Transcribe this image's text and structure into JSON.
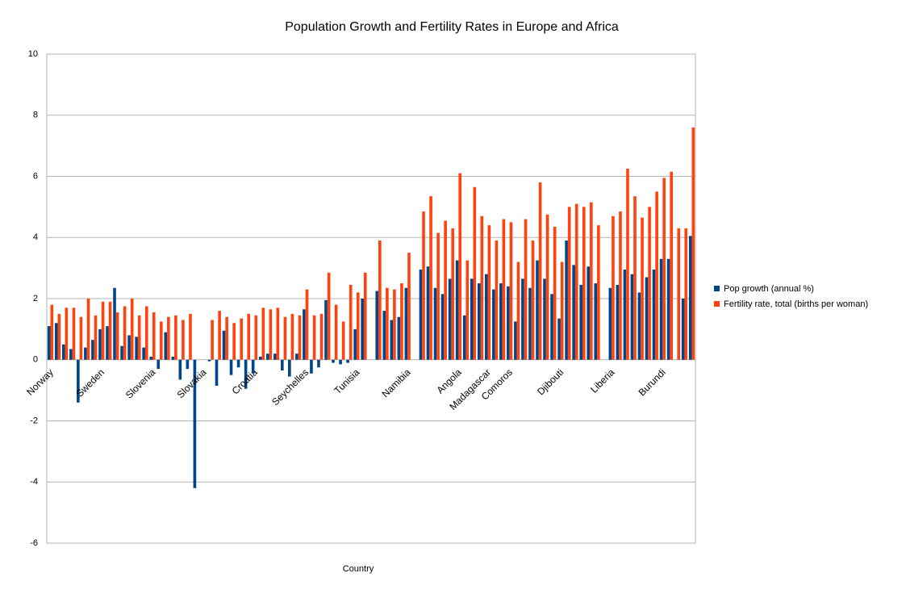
{
  "chart_data": {
    "type": "bar",
    "title": "Population Growth and Fertility Rates in Europe and Africa",
    "x_label": "Country",
    "categories": [
      "Norway",
      null,
      null,
      null,
      null,
      null,
      null,
      "Sweden",
      null,
      null,
      null,
      null,
      null,
      null,
      "Slovenia",
      null,
      null,
      null,
      null,
      null,
      null,
      "Slovakia",
      null,
      null,
      null,
      null,
      null,
      null,
      "Croatia",
      null,
      null,
      null,
      null,
      null,
      null,
      "Seychelles",
      null,
      null,
      null,
      null,
      null,
      null,
      "Tunisia",
      null,
      null,
      null,
      null,
      null,
      null,
      "Namibia",
      null,
      null,
      null,
      null,
      null,
      null,
      "Angola",
      null,
      null,
      null,
      "Madagascar",
      null,
      null,
      "Comoros",
      null,
      null,
      null,
      null,
      null,
      null,
      "Djibouti",
      null,
      null,
      null,
      null,
      null,
      null,
      "Liberia",
      null,
      null,
      null,
      null,
      null,
      null,
      "Burundi",
      null,
      null,
      null,
      null
    ],
    "series": [
      {
        "name": "Pop growth (annual %)",
        "color": "#004586",
        "values": [
          1.1,
          1.2,
          0.5,
          0.35,
          -1.4,
          0.4,
          0.65,
          1.0,
          1.1,
          2.35,
          0.45,
          0.8,
          0.75,
          0.4,
          0.1,
          -0.3,
          0.9,
          0.1,
          -0.65,
          -0.3,
          -4.2,
          null,
          -0.05,
          -0.85,
          0.95,
          -0.5,
          -0.25,
          -0.95,
          -0.45,
          0.1,
          0.2,
          0.2,
          -0.35,
          -0.55,
          0.2,
          1.65,
          -0.45,
          -0.25,
          1.95,
          -0.1,
          -0.15,
          -0.1,
          1.0,
          2.0,
          null,
          2.25,
          1.6,
          1.3,
          1.4,
          2.35,
          null,
          2.95,
          3.05,
          2.35,
          2.15,
          2.65,
          3.25,
          1.45,
          2.65,
          2.5,
          2.8,
          2.3,
          2.5,
          2.4,
          1.25,
          2.65,
          2.35,
          3.25,
          2.65,
          2.15,
          1.35,
          3.9,
          3.1,
          2.45,
          3.05,
          2.5,
          null,
          2.35,
          2.45,
          2.95,
          2.8,
          2.2,
          2.7,
          2.95,
          3.3,
          3.3,
          null,
          2.0,
          4.05
        ]
      },
      {
        "name": "Fertility rate, total (births per woman)",
        "color": "#ff420e",
        "values": [
          1.8,
          1.5,
          1.7,
          1.7,
          1.4,
          2.0,
          1.45,
          1.9,
          1.9,
          1.55,
          1.75,
          2.0,
          1.45,
          1.75,
          1.55,
          1.25,
          1.4,
          1.45,
          1.3,
          1.5,
          null,
          null,
          1.3,
          1.6,
          1.4,
          1.2,
          1.35,
          1.5,
          1.45,
          1.7,
          1.65,
          1.7,
          1.4,
          1.5,
          1.45,
          2.3,
          1.45,
          1.5,
          2.85,
          1.8,
          1.25,
          2.45,
          2.2,
          2.85,
          null,
          3.9,
          2.35,
          2.3,
          2.5,
          3.5,
          null,
          4.85,
          5.35,
          4.15,
          4.55,
          4.3,
          6.1,
          3.25,
          5.65,
          4.7,
          4.4,
          3.9,
          4.6,
          4.5,
          3.2,
          4.6,
          3.9,
          5.8,
          4.75,
          4.35,
          3.2,
          5.0,
          5.1,
          5.0,
          5.15,
          4.4,
          null,
          4.7,
          4.85,
          6.25,
          5.35,
          4.65,
          5.0,
          5.5,
          5.95,
          6.15,
          4.3,
          4.3,
          7.6
        ]
      }
    ],
    "ylim": [
      -6,
      10
    ],
    "yticks": [
      -6,
      -4,
      -2,
      0,
      2,
      4,
      6,
      8,
      10
    ],
    "grid": true,
    "legend": "right"
  }
}
